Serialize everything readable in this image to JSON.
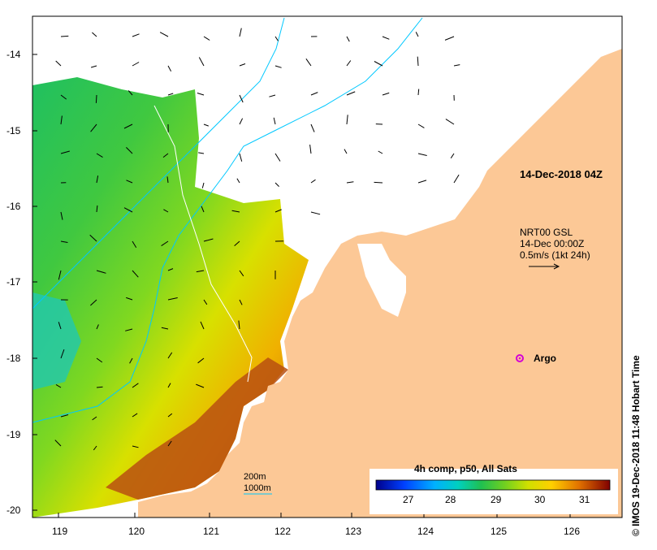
{
  "map": {
    "timestamp": "14-Dec-2018 04Z",
    "current_source": {
      "name": "NRT00 GSL",
      "date": "14-Dec 00:00Z",
      "scale": "0.5m/s (1kt 24h)"
    },
    "marker": {
      "label": "Argo",
      "color": "#d400d4"
    },
    "isobaths": {
      "shallow": "200m",
      "deep": "1000m",
      "color": "#00c8ff"
    },
    "colorbar": {
      "title": "4h comp, p50, All Sats",
      "ticks": [
        "27",
        "28",
        "29",
        "30",
        "31"
      ],
      "colors": [
        "#00008b",
        "#0050ff",
        "#00c8ff",
        "#20c060",
        "#60d020",
        "#c8e000",
        "#ffe000",
        "#f0a000",
        "#c05000",
        "#8b1000"
      ]
    },
    "credit": "© IMOS 19-Dec-2018 11:48 Hobart Time",
    "x_ticks": [
      "119",
      "120",
      "121",
      "122",
      "123",
      "124",
      "125",
      "126"
    ],
    "y_ticks": [
      "-14",
      "-15",
      "-16",
      "-17",
      "-18",
      "-19",
      "-20"
    ],
    "colors": {
      "land": "#fcc896",
      "sea_white": "#ffffff",
      "frame": "#000000"
    }
  }
}
